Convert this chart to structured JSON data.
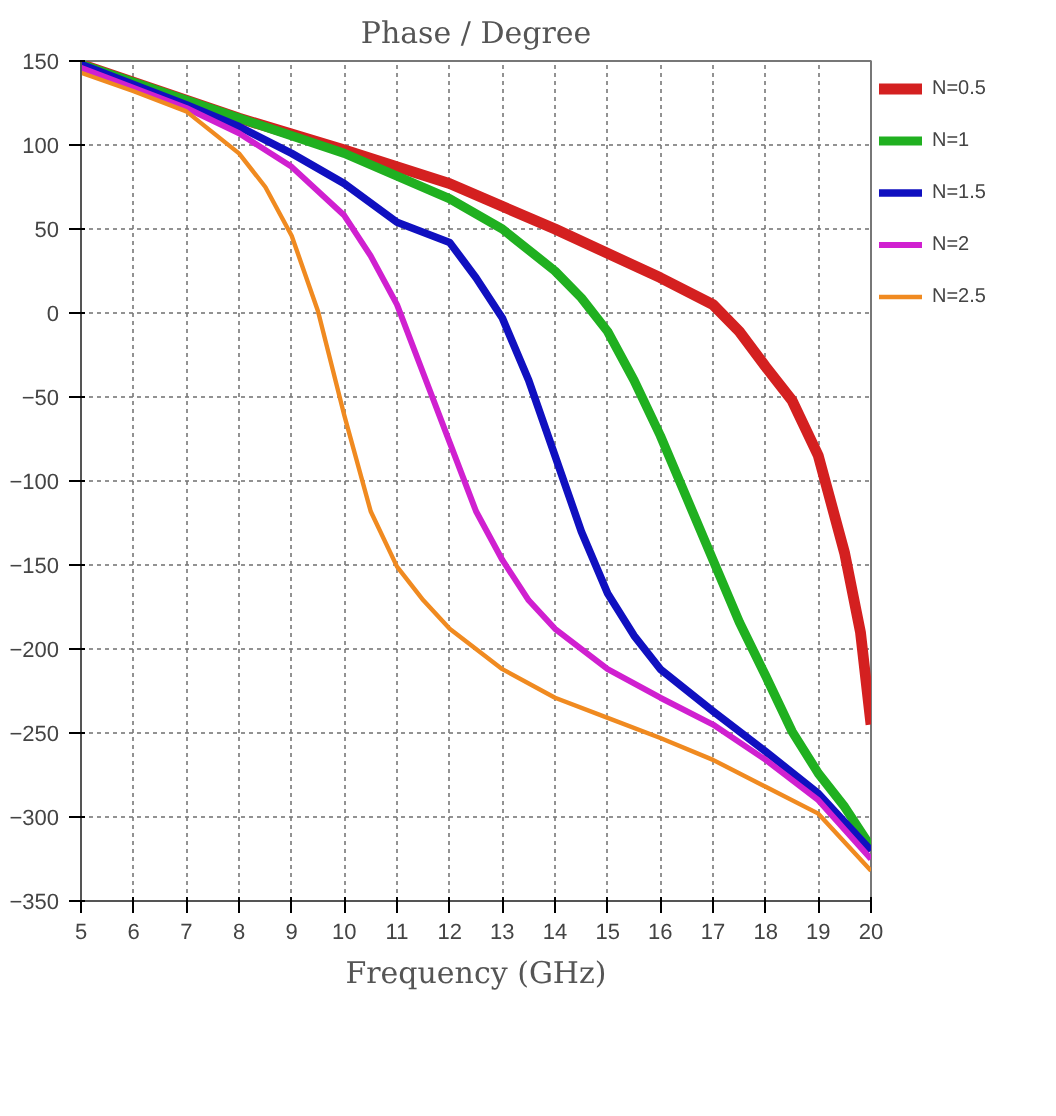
{
  "chart_data": {
    "type": "line",
    "title": "Phase / Degree",
    "xlabel": "Frequency (GHz)",
    "xlim": [
      5,
      20
    ],
    "xticks": [
      5,
      6,
      7,
      8,
      9,
      10,
      11,
      12,
      13,
      14,
      15,
      16,
      17,
      18,
      19,
      20
    ],
    "ylim": [
      -350,
      150
    ],
    "yticks": [
      -350,
      -300,
      -250,
      -200,
      -150,
      -100,
      -50,
      0,
      50,
      100,
      150
    ],
    "grid": true,
    "legend": "top right",
    "line_style": "solid",
    "series": [
      {
        "name": "N=0.5",
        "color": "#d42020",
        "x": [
          5,
          8,
          10,
          12,
          14,
          16,
          17,
          17.5,
          18,
          18.5,
          19,
          19.5,
          19.8,
          20
        ],
        "values": [
          148,
          116,
          97,
          77,
          50,
          21,
          5,
          -11,
          -32,
          -52,
          -85,
          -143,
          -190,
          -245
        ]
      },
      {
        "name": "N=1",
        "color": "#20b020",
        "x": [
          5,
          8,
          10,
          12,
          13,
          14,
          14.5,
          15,
          15.5,
          16,
          16.5,
          17,
          17.5,
          18,
          18.5,
          19,
          19.5,
          20
        ],
        "values": [
          148,
          116,
          95,
          68,
          50,
          25,
          9,
          -11,
          -40,
          -73,
          -110,
          -147,
          -184,
          -216,
          -249,
          -274,
          -294,
          -318
        ]
      },
      {
        "name": "N=1.5",
        "color": "#1010c0",
        "x": [
          5,
          7,
          8,
          9,
          10,
          11,
          12,
          12.5,
          13,
          13.5,
          14,
          14.5,
          15,
          15.5,
          16,
          17,
          18,
          19,
          20
        ],
        "values": [
          148,
          124,
          111,
          95,
          77,
          54,
          42,
          21,
          -3,
          -40,
          -85,
          -130,
          -167,
          -192,
          -212,
          -237,
          -261,
          -286,
          -320
        ]
      },
      {
        "name": "N=2",
        "color": "#d020d0",
        "x": [
          5,
          7,
          8,
          9,
          10,
          10.5,
          11,
          11.5,
          12,
          12.5,
          13,
          13.5,
          14,
          15,
          16,
          17,
          18,
          19,
          20
        ],
        "values": [
          146,
          122,
          107,
          87,
          58,
          34,
          5,
          -36,
          -77,
          -118,
          -147,
          -171,
          -188,
          -212,
          -229,
          -245,
          -266,
          -290,
          -325
        ]
      },
      {
        "name": "N=2.5",
        "color": "#f08a20",
        "x": [
          5,
          6,
          7,
          8,
          8.5,
          9,
          9.5,
          10,
          10.5,
          11,
          11.5,
          12,
          13,
          14,
          15,
          16,
          17,
          18,
          19,
          20
        ],
        "values": [
          143,
          132,
          120,
          95,
          75,
          46,
          1,
          -61,
          -118,
          -151,
          -171,
          -188,
          -212,
          -229,
          -241,
          -253,
          -266,
          -282,
          -298,
          -332
        ]
      }
    ]
  }
}
